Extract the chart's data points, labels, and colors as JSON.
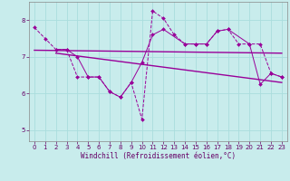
{
  "background_color": "#c8ecec",
  "grid_color": "#aadddd",
  "line_color": "#990099",
  "xlim": [
    -0.5,
    23.5
  ],
  "ylim": [
    4.7,
    8.5
  ],
  "xlabel": "Windchill (Refroidissement éolien,°C)",
  "yticks": [
    5,
    6,
    7,
    8
  ],
  "xticks": [
    0,
    1,
    2,
    3,
    4,
    5,
    6,
    7,
    8,
    9,
    10,
    11,
    12,
    13,
    14,
    15,
    16,
    17,
    18,
    19,
    20,
    21,
    22,
    23
  ],
  "series1_x": [
    0,
    1,
    2,
    3,
    4,
    5,
    6,
    7,
    8,
    9,
    10,
    11,
    12,
    13,
    14,
    15,
    16,
    17,
    18,
    19,
    20,
    21,
    22,
    23
  ],
  "series1_y": [
    7.8,
    7.5,
    7.2,
    7.2,
    6.45,
    6.45,
    6.45,
    6.05,
    5.9,
    6.3,
    5.3,
    8.25,
    8.05,
    7.6,
    7.35,
    7.35,
    7.35,
    7.7,
    7.75,
    7.35,
    7.35,
    7.35,
    6.55,
    6.45
  ],
  "series2_x": [
    2,
    3,
    4,
    5,
    6,
    7,
    8,
    9,
    10,
    11,
    12,
    14,
    15,
    16,
    17,
    18,
    20,
    21,
    22,
    23
  ],
  "series2_y": [
    7.2,
    7.2,
    7.0,
    6.45,
    6.45,
    6.05,
    5.9,
    6.3,
    6.85,
    7.6,
    7.75,
    7.35,
    7.35,
    7.35,
    7.7,
    7.75,
    7.35,
    6.25,
    6.55,
    6.45
  ],
  "trend1_x": [
    0,
    23
  ],
  "trend1_y": [
    7.18,
    7.1
  ],
  "trend2_x": [
    2,
    23
  ],
  "trend2_y": [
    7.1,
    6.3
  ]
}
